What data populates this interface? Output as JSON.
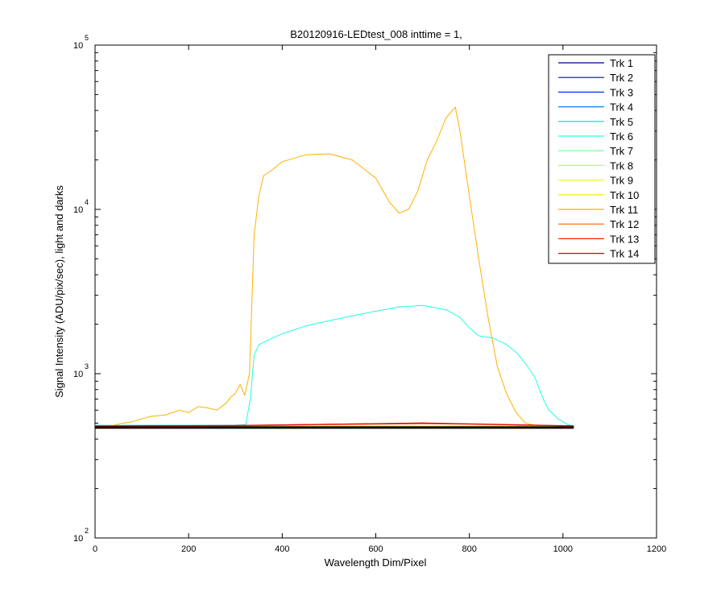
{
  "chart_data": {
    "type": "line",
    "title": "B20120916-LEDtest_008 inttime = 1,",
    "xlabel": "Wavelength Dim/Pixel",
    "ylabel": "Signal Intensity (ADU/pix/sec), light and darks",
    "xlim": [
      0,
      1200
    ],
    "ylim": [
      100,
      100000
    ],
    "yscale": "log",
    "xticks": [
      0,
      200,
      400,
      600,
      800,
      1000,
      1200
    ],
    "yticks": [
      {
        "value": 100,
        "base": "10",
        "exp": "2"
      },
      {
        "value": 1000,
        "base": "10",
        "exp": "3"
      },
      {
        "value": 10000,
        "base": "10",
        "exp": "4"
      },
      {
        "value": 100000,
        "base": "10",
        "exp": "5"
      }
    ],
    "grid": false,
    "legend_position": "top-right",
    "series": [
      {
        "name": "Trk 1",
        "color": "#00008f",
        "points": [
          [
            0,
            470
          ],
          [
            1023,
            470
          ]
        ]
      },
      {
        "name": "Trk 2",
        "color": "#0000df",
        "points": [
          [
            0,
            472
          ],
          [
            1023,
            472
          ]
        ]
      },
      {
        "name": "Trk 3",
        "color": "#0030ff",
        "points": [
          [
            0,
            474
          ],
          [
            940,
            474
          ],
          [
            948,
            486
          ],
          [
            956,
            474
          ],
          [
            1023,
            474
          ]
        ]
      },
      {
        "name": "Trk 4",
        "color": "#0080ff",
        "points": [
          [
            0,
            475
          ],
          [
            1023,
            475
          ]
        ]
      },
      {
        "name": "Trk 5",
        "color": "#00cfff",
        "points": [
          [
            0,
            478
          ],
          [
            1023,
            478
          ]
        ]
      },
      {
        "name": "Trk 6",
        "color": "#20ffdf",
        "points": [
          [
            0,
            485
          ],
          [
            300,
            486
          ],
          [
            322,
            490
          ],
          [
            332,
            700
          ],
          [
            340,
            1300
          ],
          [
            350,
            1500
          ],
          [
            380,
            1650
          ],
          [
            400,
            1750
          ],
          [
            450,
            1950
          ],
          [
            500,
            2100
          ],
          [
            550,
            2250
          ],
          [
            600,
            2400
          ],
          [
            650,
            2550
          ],
          [
            700,
            2600
          ],
          [
            750,
            2450
          ],
          [
            780,
            2200
          ],
          [
            800,
            1900
          ],
          [
            820,
            1700
          ],
          [
            850,
            1650
          ],
          [
            880,
            1500
          ],
          [
            900,
            1350
          ],
          [
            920,
            1150
          ],
          [
            940,
            950
          ],
          [
            950,
            800
          ],
          [
            960,
            680
          ],
          [
            970,
            600
          ],
          [
            990,
            530
          ],
          [
            1010,
            490
          ],
          [
            1023,
            480
          ]
        ]
      },
      {
        "name": "Trk 7",
        "color": "#70ff8f",
        "points": [
          [
            0,
            477
          ],
          [
            1023,
            477
          ]
        ]
      },
      {
        "name": "Trk 8",
        "color": "#bfff40",
        "points": [
          [
            0,
            476
          ],
          [
            1023,
            476
          ]
        ]
      },
      {
        "name": "Trk 9",
        "color": "#efff10",
        "points": [
          [
            0,
            478
          ],
          [
            1023,
            478
          ]
        ]
      },
      {
        "name": "Trk 10",
        "color": "#ffdf00",
        "points": [
          [
            0,
            480
          ],
          [
            1023,
            480
          ]
        ]
      },
      {
        "name": "Trk 11",
        "color": "#ffaf00",
        "points": [
          [
            0,
            480
          ],
          [
            40,
            485
          ],
          [
            60,
            500
          ],
          [
            80,
            510
          ],
          [
            100,
            530
          ],
          [
            120,
            550
          ],
          [
            150,
            560
          ],
          [
            180,
            600
          ],
          [
            200,
            580
          ],
          [
            220,
            630
          ],
          [
            240,
            620
          ],
          [
            260,
            600
          ],
          [
            280,
            660
          ],
          [
            290,
            720
          ],
          [
            300,
            760
          ],
          [
            310,
            860
          ],
          [
            320,
            740
          ],
          [
            330,
            1000
          ],
          [
            340,
            7000
          ],
          [
            350,
            12000
          ],
          [
            360,
            16000
          ],
          [
            380,
            17500
          ],
          [
            400,
            19500
          ],
          [
            450,
            21500
          ],
          [
            500,
            21800
          ],
          [
            550,
            20000
          ],
          [
            600,
            15500
          ],
          [
            630,
            11000
          ],
          [
            650,
            9500
          ],
          [
            670,
            10000
          ],
          [
            690,
            13000
          ],
          [
            710,
            20000
          ],
          [
            730,
            26000
          ],
          [
            750,
            36000
          ],
          [
            770,
            42000
          ],
          [
            780,
            30000
          ],
          [
            800,
            12000
          ],
          [
            820,
            5000
          ],
          [
            840,
            2200
          ],
          [
            860,
            1100
          ],
          [
            880,
            750
          ],
          [
            900,
            580
          ],
          [
            920,
            500
          ],
          [
            940,
            485
          ],
          [
            1023,
            480
          ]
        ]
      },
      {
        "name": "Trk 12",
        "color": "#ff6000",
        "points": [
          [
            0,
            478
          ],
          [
            300,
            480
          ],
          [
            500,
            490
          ],
          [
            700,
            495
          ],
          [
            800,
            492
          ],
          [
            900,
            486
          ],
          [
            1023,
            480
          ]
        ]
      },
      {
        "name": "Trk 13",
        "color": "#ff2000",
        "points": [
          [
            0,
            480
          ],
          [
            300,
            483
          ],
          [
            500,
            492
          ],
          [
            700,
            500
          ],
          [
            800,
            494
          ],
          [
            900,
            488
          ],
          [
            1023,
            480
          ]
        ]
      },
      {
        "name": "Trk 14",
        "color": "#df0000",
        "points": [
          [
            0,
            481
          ],
          [
            300,
            484
          ],
          [
            500,
            493
          ],
          [
            700,
            502
          ],
          [
            800,
            495
          ],
          [
            900,
            489
          ],
          [
            1023,
            481
          ]
        ]
      }
    ]
  }
}
